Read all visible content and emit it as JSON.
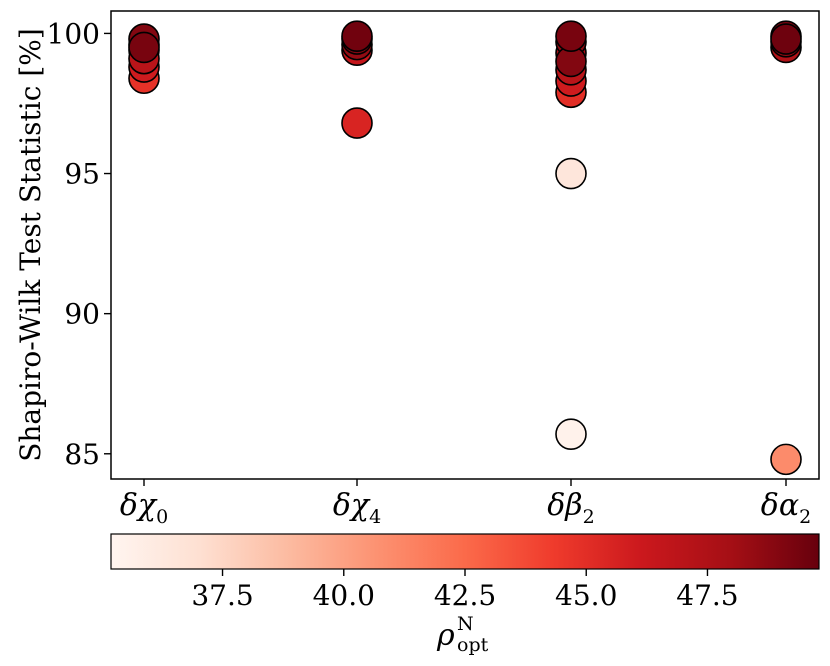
{
  "chart_data": {
    "type": "scatter",
    "ylabel": "Shapiro-Wilk Test Statistic [%]",
    "xlabel": "",
    "categories": [
      "δχ",
      "δχ",
      "δβ",
      "δα"
    ],
    "category_subscripts": [
      "0",
      "4",
      "2",
      "2"
    ],
    "ylim": [
      84.1,
      100.8
    ],
    "yticks": [
      85,
      90,
      95,
      100
    ],
    "grid": false,
    "points": [
      {
        "x": "δχ₀",
        "y": 98.4,
        "c": 44.8
      },
      {
        "x": "δχ₀",
        "y": 98.8,
        "c": 46.0
      },
      {
        "x": "δχ₀",
        "y": 99.1,
        "c": 47.0
      },
      {
        "x": "δχ₀",
        "y": 99.4,
        "c": 46.5
      },
      {
        "x": "δχ₀",
        "y": 99.6,
        "c": 48.0
      },
      {
        "x": "δχ₀",
        "y": 99.8,
        "c": 49.0
      },
      {
        "x": "δχ₀",
        "y": 99.5,
        "c": 49.3
      },
      {
        "x": "δχ₄",
        "y": 96.8,
        "c": 45.5
      },
      {
        "x": "δχ₄",
        "y": 99.4,
        "c": 46.5
      },
      {
        "x": "δχ₄",
        "y": 99.6,
        "c": 48.5
      },
      {
        "x": "δχ₄",
        "y": 99.8,
        "c": 49.0
      },
      {
        "x": "δχ₄",
        "y": 99.9,
        "c": 49.5
      },
      {
        "x": "δβ₂",
        "y": 85.7,
        "c": 35.5
      },
      {
        "x": "δβ₂",
        "y": 95.0,
        "c": 36.5
      },
      {
        "x": "δβ₂",
        "y": 97.9,
        "c": 45.0
      },
      {
        "x": "δβ₂",
        "y": 98.3,
        "c": 46.0
      },
      {
        "x": "δβ₂",
        "y": 98.7,
        "c": 47.0
      },
      {
        "x": "δβ₂",
        "y": 99.3,
        "c": 47.5
      },
      {
        "x": "δβ₂",
        "y": 99.7,
        "c": 48.5
      },
      {
        "x": "δβ₂",
        "y": 99.9,
        "c": 49.3
      },
      {
        "x": "δβ₂",
        "y": 99.0,
        "c": 49.0
      },
      {
        "x": "δα₂",
        "y": 84.8,
        "c": 41.0
      },
      {
        "x": "δα₂",
        "y": 99.5,
        "c": 47.5
      },
      {
        "x": "δα₂",
        "y": 99.7,
        "c": 48.5
      },
      {
        "x": "δα₂",
        "y": 99.9,
        "c": 49.2
      },
      {
        "x": "δα₂",
        "y": 99.8,
        "c": 49.6
      }
    ],
    "colorbar": {
      "label": "ρ",
      "label_superscript": "N",
      "label_subscript": "opt",
      "colormap": "Reds",
      "range": [
        35.2,
        49.8
      ],
      "ticks": [
        37.5,
        40.0,
        42.5,
        45.0,
        47.5
      ],
      "tick_labels": [
        "37.5",
        "40.0",
        "42.5",
        "45.0",
        "47.5"
      ],
      "colors": [
        "#fff5f0",
        "#fee0d2",
        "#fcbba1",
        "#fc9272",
        "#fb6a4a",
        "#ef3b2c",
        "#cb181d",
        "#a50f15",
        "#67000d"
      ]
    }
  }
}
